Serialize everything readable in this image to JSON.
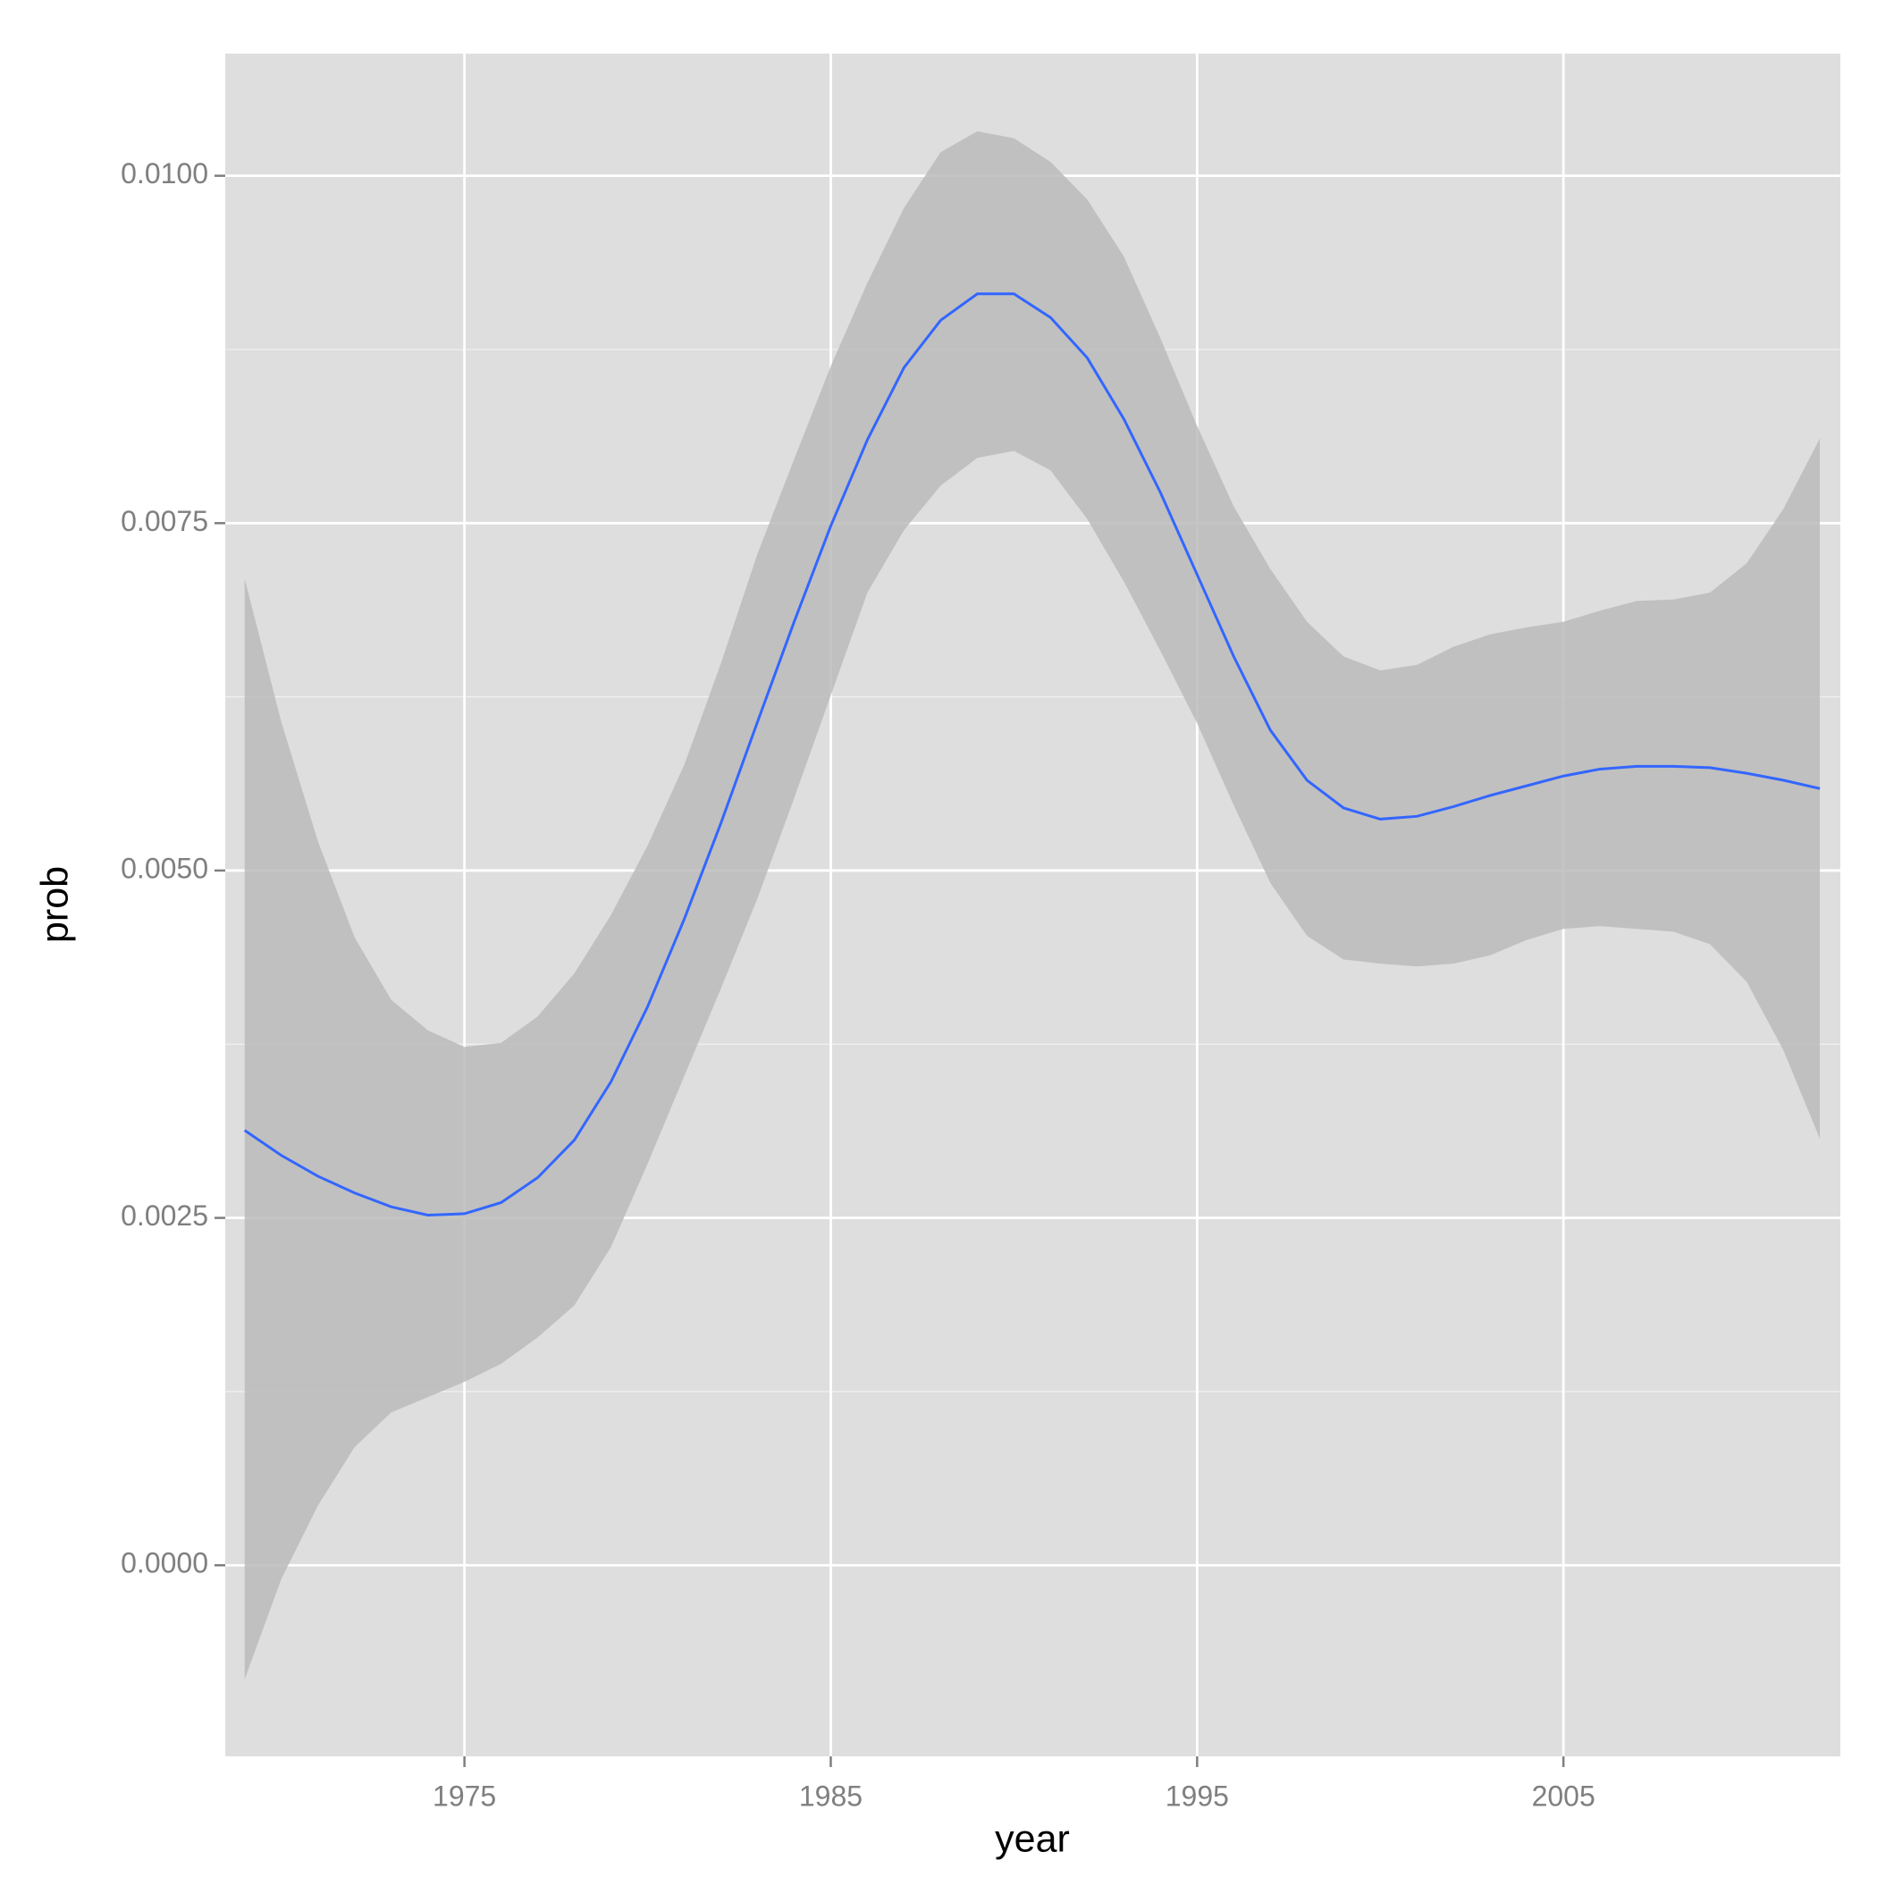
{
  "chart_data": {
    "type": "line",
    "x_label": "year",
    "y_label": "prob",
    "x": [
      1969,
      1970,
      1971,
      1972,
      1973,
      1974,
      1975,
      1976,
      1977,
      1978,
      1979,
      1980,
      1981,
      1982,
      1983,
      1984,
      1985,
      1986,
      1987,
      1988,
      1989,
      1990,
      1991,
      1992,
      1993,
      1994,
      1995,
      1996,
      1997,
      1998,
      1999,
      2000,
      2001,
      2002,
      2003,
      2004,
      2005,
      2006,
      2007,
      2008,
      2009,
      2010,
      2011,
      2012
    ],
    "values": [
      0.00313,
      0.00295,
      0.0028,
      0.00268,
      0.00258,
      0.00252,
      0.00253,
      0.00261,
      0.00279,
      0.00306,
      0.00348,
      0.00402,
      0.00465,
      0.00534,
      0.00607,
      0.00679,
      0.00748,
      0.0081,
      0.00862,
      0.00896,
      0.00915,
      0.00915,
      0.00898,
      0.00869,
      0.00825,
      0.00772,
      0.00713,
      0.00654,
      0.00601,
      0.00565,
      0.00545,
      0.00537,
      0.00539,
      0.00546,
      0.00554,
      0.00561,
      0.00568,
      0.00573,
      0.00575,
      0.00575,
      0.00574,
      0.0057,
      0.00565,
      0.00559
    ],
    "ribbon_upper": [
      0.0071,
      0.00607,
      0.00521,
      0.00452,
      0.00407,
      0.00385,
      0.00373,
      0.00376,
      0.00395,
      0.00426,
      0.00468,
      0.00518,
      0.00576,
      0.00649,
      0.00728,
      0.00796,
      0.00863,
      0.00923,
      0.00977,
      0.01017,
      0.01032,
      0.01027,
      0.0101,
      0.00983,
      0.00942,
      0.00883,
      0.0082,
      0.00762,
      0.00717,
      0.00679,
      0.00654,
      0.00644,
      0.00648,
      0.00661,
      0.0067,
      0.00675,
      0.00679,
      0.00687,
      0.00694,
      0.00695,
      0.007,
      0.00721,
      0.0076,
      0.00811
    ],
    "ribbon_lower": [
      -0.00082,
      -0.0001,
      0.00043,
      0.00085,
      0.0011,
      0.00121,
      0.00132,
      0.00145,
      0.00164,
      0.00187,
      0.00229,
      0.00289,
      0.00352,
      0.00415,
      0.0048,
      0.00552,
      0.00626,
      0.007,
      0.00745,
      0.00777,
      0.00797,
      0.00802,
      0.00788,
      0.00753,
      0.00708,
      0.00658,
      0.00606,
      0.00547,
      0.00491,
      0.00453,
      0.00436,
      0.00433,
      0.00431,
      0.00433,
      0.00439,
      0.0045,
      0.00458,
      0.0046,
      0.00458,
      0.00456,
      0.00447,
      0.0042,
      0.00371,
      0.00307
    ],
    "color": "#3366ff",
    "ribbon_color": "#bbbbbb",
    "panel_color": "#dedede",
    "xlim": [
      1968.47,
      2012.56
    ],
    "ylim": [
      -0.001375,
      0.010879
    ],
    "xticks": [
      1975,
      1985,
      1995,
      2005
    ],
    "yticks": [
      {
        "value": 0,
        "label": "0.0000"
      },
      {
        "value": 0.0025,
        "label": "0.0025"
      },
      {
        "value": 0.005,
        "label": "0.0050"
      },
      {
        "value": 0.0075,
        "label": "0.0075"
      },
      {
        "value": 0.01,
        "label": "0.0100"
      }
    ],
    "grid": true
  }
}
